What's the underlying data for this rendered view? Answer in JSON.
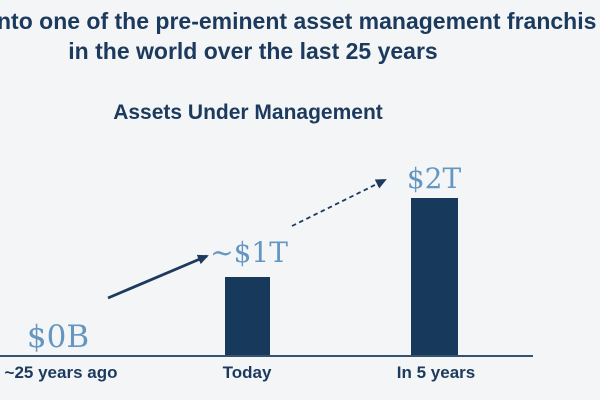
{
  "slide_title": {
    "line1": "nto one of the pre-eminent asset management franchis",
    "line2": "in the world over the last 25 years"
  },
  "chart_data": {
    "type": "bar",
    "title": "Assets Under Management",
    "categories": [
      "~25 years ago",
      "Today",
      "In 5 years"
    ],
    "values": [
      0,
      1,
      2
    ],
    "unit": "USD trillions",
    "value_labels": [
      "$0B",
      "~$1T",
      "$2T"
    ],
    "ylim": [
      0,
      2
    ],
    "grid": false,
    "legend": false,
    "annotations": [
      {
        "type": "arrow",
        "style": "solid",
        "from": "~25 years ago ($0B)",
        "to": "Today (~$1T)"
      },
      {
        "type": "arrow",
        "style": "dashed",
        "from": "Today (~$1T)",
        "to": "In 5 years ($2T)"
      }
    ]
  },
  "colors": {
    "background": "#f4f5f6",
    "navy": "#1c3a5e",
    "bar": "#17395c",
    "value_label": "#6496c2",
    "axis_line": "#35536f"
  }
}
